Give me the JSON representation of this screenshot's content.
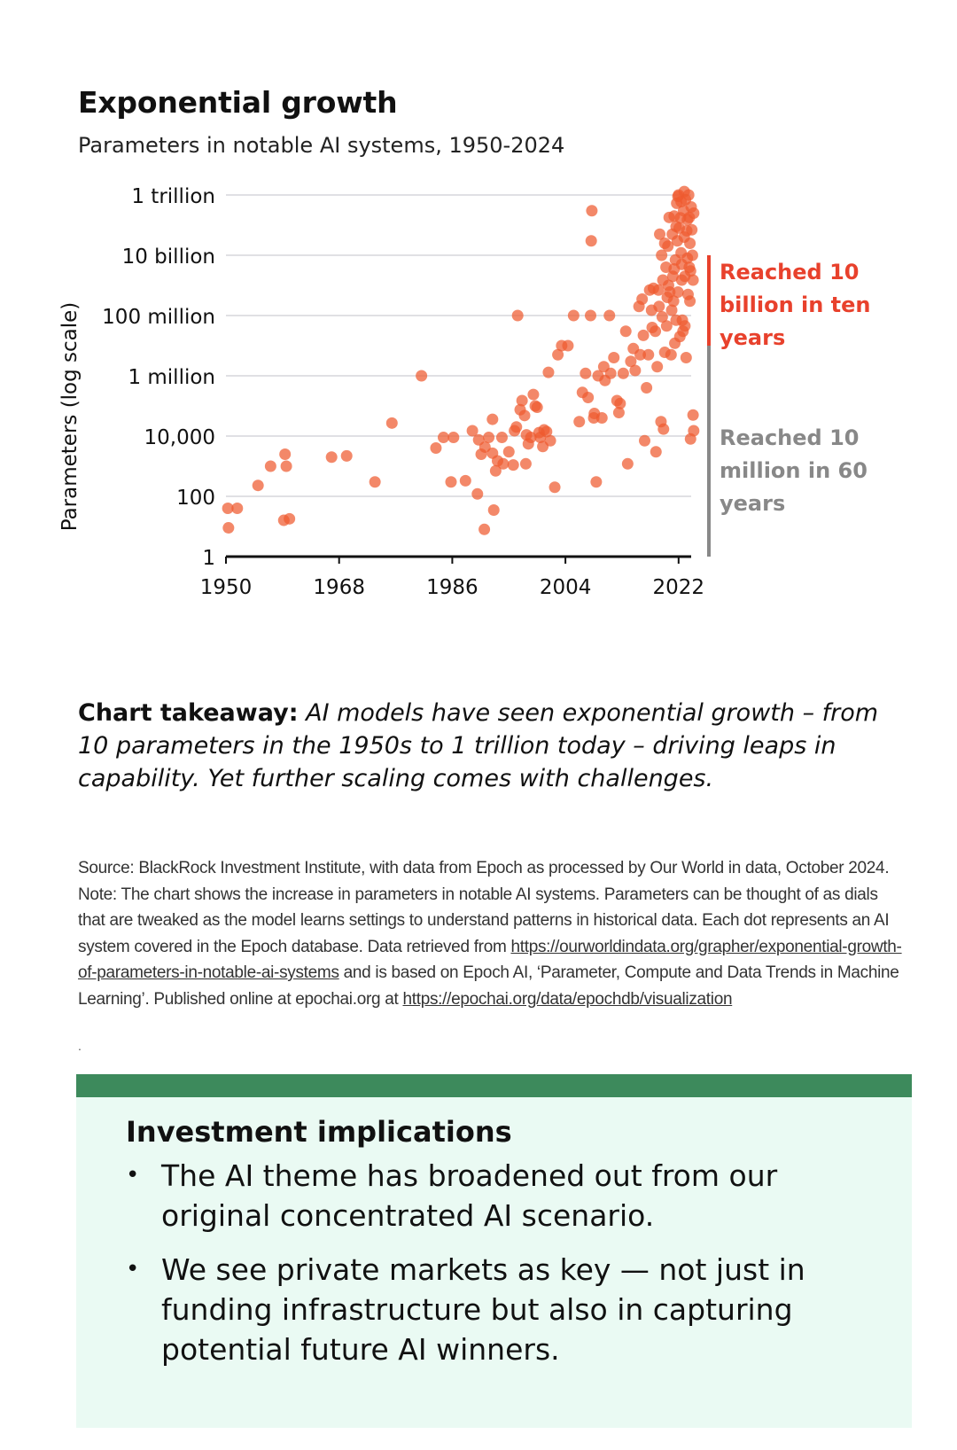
{
  "header": {
    "title": "Exponential growth",
    "subtitle": "Parameters in notable AI systems, 1950-2024"
  },
  "chart_data": {
    "type": "scatter",
    "title": "Exponential growth",
    "subtitle": "Parameters in notable AI systems, 1950-2024",
    "ylabel": "Parameters (log scale)",
    "xlabel": "",
    "y_scale": "log",
    "ylim": [
      1,
      1000000000000
    ],
    "xlim": [
      1950,
      2024
    ],
    "grid": "horizontal",
    "y_ticks": [
      {
        "value": 1000000000000,
        "label": "1 trillion"
      },
      {
        "value": 10000000000,
        "label": "10 billion"
      },
      {
        "value": 100000000,
        "label": "100 million"
      },
      {
        "value": 1000000,
        "label": "1 million"
      },
      {
        "value": 10000,
        "label": "10,000"
      },
      {
        "value": 100,
        "label": "100"
      },
      {
        "value": 1,
        "label": "1"
      }
    ],
    "x_ticks": [
      {
        "value": 1950,
        "label": "1950"
      },
      {
        "value": 1968,
        "label": "1968"
      },
      {
        "value": 1986,
        "label": "1986"
      },
      {
        "value": 2004,
        "label": "2004"
      },
      {
        "value": 2022,
        "label": "2022"
      }
    ],
    "annotations": [
      {
        "text": "Reached 10 billion in ten years",
        "lines": [
          "Reached 10",
          "billion in ten",
          "years"
        ],
        "color": "#e8412c",
        "range": [
          10000000,
          10000000000
        ]
      },
      {
        "text": "Reached 10 million in 60 years",
        "lines": [
          "Reached 10",
          "million in 60",
          "years"
        ],
        "color": "#888888",
        "range": [
          1,
          10000000
        ]
      }
    ],
    "point_color": "#ee5a2f",
    "points": [
      [
        1950.3,
        40
      ],
      [
        1951.8,
        40
      ],
      [
        1950.4,
        9
      ],
      [
        1955.1,
        230
      ],
      [
        1957.1,
        1000
      ],
      [
        1959.4,
        2500
      ],
      [
        1959.6,
        1000
      ],
      [
        1959.2,
        16
      ],
      [
        1960.1,
        18
      ],
      [
        1966.8,
        2000
      ],
      [
        1969.2,
        2200
      ],
      [
        1973.7,
        300
      ],
      [
        1976.4,
        27000
      ],
      [
        1981.1,
        1000000
      ],
      [
        1983.4,
        4000
      ],
      [
        1984.6,
        9000
      ],
      [
        1986.2,
        9000
      ],
      [
        1985.8,
        300
      ],
      [
        1988.1,
        330
      ],
      [
        1989.2,
        15000
      ],
      [
        1990.2,
        7500
      ],
      [
        1990.6,
        2500
      ],
      [
        1991.2,
        4300
      ],
      [
        1991.8,
        9000
      ],
      [
        1992.4,
        36000
      ],
      [
        1992.4,
        2700
      ],
      [
        1993.2,
        1500
      ],
      [
        1992.9,
        700
      ],
      [
        1993.9,
        9000
      ],
      [
        1994.1,
        1200
      ],
      [
        1995.0,
        3000
      ],
      [
        1995.7,
        1100
      ],
      [
        1995.9,
        15000
      ],
      [
        1996.2,
        20000
      ],
      [
        1996.8,
        75000
      ],
      [
        1997.1,
        150000
      ],
      [
        1997.5,
        48000
      ],
      [
        1997.8,
        11000
      ],
      [
        1998.1,
        5500
      ],
      [
        1998.5,
        9000
      ],
      [
        1998.9,
        240000
      ],
      [
        1999.5,
        90000
      ],
      [
        1999.8,
        13000
      ],
      [
        1991.1,
        8
      ],
      [
        1990.0,
        120
      ],
      [
        1992.6,
        35
      ],
      [
        1996.4,
        100000000
      ],
      [
        1997.7,
        1200
      ],
      [
        1999.2,
        100000
      ],
      [
        2000.0,
        9000
      ],
      [
        2000.4,
        4500
      ],
      [
        2000.6,
        16000
      ],
      [
        2001.0,
        14000
      ],
      [
        2001.3,
        1300000
      ],
      [
        2001.6,
        7000
      ],
      [
        2002.3,
        200
      ],
      [
        2002.8,
        5000000
      ],
      [
        2003.4,
        10000000
      ],
      [
        2004.4,
        10000000
      ],
      [
        2005.3,
        100000000
      ],
      [
        2006.2,
        30000
      ],
      [
        2006.7,
        280000
      ],
      [
        2007.2,
        1200000
      ],
      [
        2007.6,
        190000
      ],
      [
        2008.6,
        56000
      ],
      [
        2008.0,
        100000000
      ],
      [
        2008.5,
        40000
      ],
      [
        2008.9,
        300
      ],
      [
        2009.2,
        1000000
      ],
      [
        2009.8,
        40000
      ],
      [
        2008.1,
        30000000000
      ],
      [
        2008.2,
        300000000000
      ],
      [
        2010.1,
        2000000
      ],
      [
        2010.3,
        700000
      ],
      [
        2011.0,
        100000000
      ],
      [
        2011.2,
        1200000
      ],
      [
        2011.7,
        4000000
      ],
      [
        2012.2,
        150000
      ],
      [
        2012.7,
        120000
      ],
      [
        2012.5,
        60000
      ],
      [
        2013.2,
        1200000
      ],
      [
        2013.6,
        30000000
      ],
      [
        2013.9,
        1200
      ],
      [
        2014.4,
        3000000
      ],
      [
        2014.8,
        8000000
      ],
      [
        2015.1,
        1500000
      ],
      [
        2015.7,
        200000000
      ],
      [
        2015.9,
        5000000
      ],
      [
        2016.4,
        22000000
      ],
      [
        2016.6,
        7000
      ],
      [
        2016.9,
        400000
      ],
      [
        2017.2,
        5000000
      ],
      [
        2017.8,
        40000000
      ],
      [
        2017.7,
        150000000
      ],
      [
        2018.0,
        800000000
      ],
      [
        2018.3,
        30000000
      ],
      [
        2018.6,
        2000000
      ],
      [
        2018.9,
        200000000
      ],
      [
        2019.0,
        50000000000
      ],
      [
        2019.3,
        10000000000
      ],
      [
        2019.5,
        1500000000
      ],
      [
        2019.8,
        6000000
      ],
      [
        2019.6,
        17000
      ],
      [
        2018.4,
        3000
      ],
      [
        2019.2,
        30000
      ],
      [
        2020.0,
        4000000000
      ],
      [
        2020.3,
        20000000000
      ],
      [
        2020.5,
        180000000000
      ],
      [
        2020.2,
        400000000
      ],
      [
        2020.6,
        600000000
      ],
      [
        2020.8,
        5000000
      ],
      [
        2021.0,
        50000000000
      ],
      [
        2021.1,
        2000000000
      ],
      [
        2021.3,
        200000000000
      ],
      [
        2021.5,
        7000000000
      ],
      [
        2021.7,
        530000000000
      ],
      [
        2021.8,
        30000000000
      ],
      [
        2021.9,
        600000000
      ],
      [
        2022.0,
        1000000000000
      ],
      [
        2022.1,
        80000000000
      ],
      [
        2022.3,
        175000000000
      ],
      [
        2022.4,
        12000000000
      ],
      [
        2022.5,
        1500000000
      ],
      [
        2022.6,
        70000000
      ],
      [
        2022.8,
        300000000000
      ],
      [
        2022.9,
        40000000000
      ],
      [
        2023.0,
        2000000000
      ],
      [
        2023.1,
        700000000000
      ],
      [
        2023.3,
        65000000000
      ],
      [
        2023.4,
        8000000000
      ],
      [
        2023.5,
        500000000
      ],
      [
        2023.6,
        1000000000000
      ],
      [
        2023.7,
        180000000000
      ],
      [
        2023.8,
        25000000000
      ],
      [
        2023.9,
        3000000000
      ],
      [
        2024.0,
        400000000000
      ],
      [
        2024.1,
        70000000000
      ],
      [
        2024.2,
        10000000000
      ],
      [
        2022.7,
        30000000
      ],
      [
        2021.4,
        12000000
      ],
      [
        2020.9,
        150000000
      ],
      [
        2021.6,
        70000000
      ],
      [
        2022.2,
        20000000
      ],
      [
        2023.2,
        4000000
      ],
      [
        2023.8,
        300000000
      ],
      [
        2024.3,
        1500000000
      ],
      [
        2024.3,
        50000
      ],
      [
        2024.4,
        15000
      ],
      [
        2023.9,
        8000
      ],
      [
        2021.2,
        300000000
      ],
      [
        2020.1,
        45000000
      ],
      [
        2022.5,
        5000000000
      ],
      [
        2023.4,
        150000000000
      ],
      [
        2021.9,
        900000000000
      ],
      [
        2022.9,
        2000000000000
      ],
      [
        2020.4,
        1000000000
      ],
      [
        2019.8,
        25000000000
      ],
      [
        2021.6,
        90000000000
      ],
      [
        2023.7,
        4000000000
      ],
      [
        2018.8,
        700000000
      ],
      [
        2019.4,
        90000000
      ],
      [
        2017.4,
        700000000
      ],
      [
        2016.2,
        350000000
      ],
      [
        2021.3,
        3500000000
      ],
      [
        2022.4,
        600000000000
      ],
      [
        2024.4,
        250000000000
      ],
      [
        2023.0,
        45000000
      ]
    ]
  },
  "takeaway": {
    "label": "Chart takeaway:",
    "text": "AI models have seen exponential growth – from 10 parameters in the 1950s to 1 trillion today – driving leaps in capability. Yet further scaling comes with challenges."
  },
  "source": {
    "part1": "Source: BlackRock Investment Institute, with data from Epoch as processed by Our World in data, October 2024. Note: The chart shows the increase in parameters in notable AI systems. Parameters can be thought of as dials that are tweaked as the model learns settings to understand patterns in historical data. Each dot represents an AI system covered in the Epoch database. Data retrieved from ",
    "link1": "https://ourworldindata.org/grapher/exponential-growth-of-parameters-in-notable-ai-systems",
    "part2": " and is based on Epoch AI, ‘Parameter, Compute and Data Trends in Machine Learning’. Published online at epochai.org at ",
    "link2": "https://epochai.org/data/epochdb/visualization",
    "trailing": "."
  },
  "implications": {
    "heading": "Investment implications",
    "bullets": [
      "The AI theme has broadened out from our original concentrated AI scenario.",
      "We see private markets as key — not just in funding infrastructure but also in capturing potential future AI winners."
    ]
  },
  "colors": {
    "accent_red": "#e8412c",
    "gray": "#888888",
    "green_bar": "#3d8a5c",
    "panel_bg": "#eafaf3"
  }
}
